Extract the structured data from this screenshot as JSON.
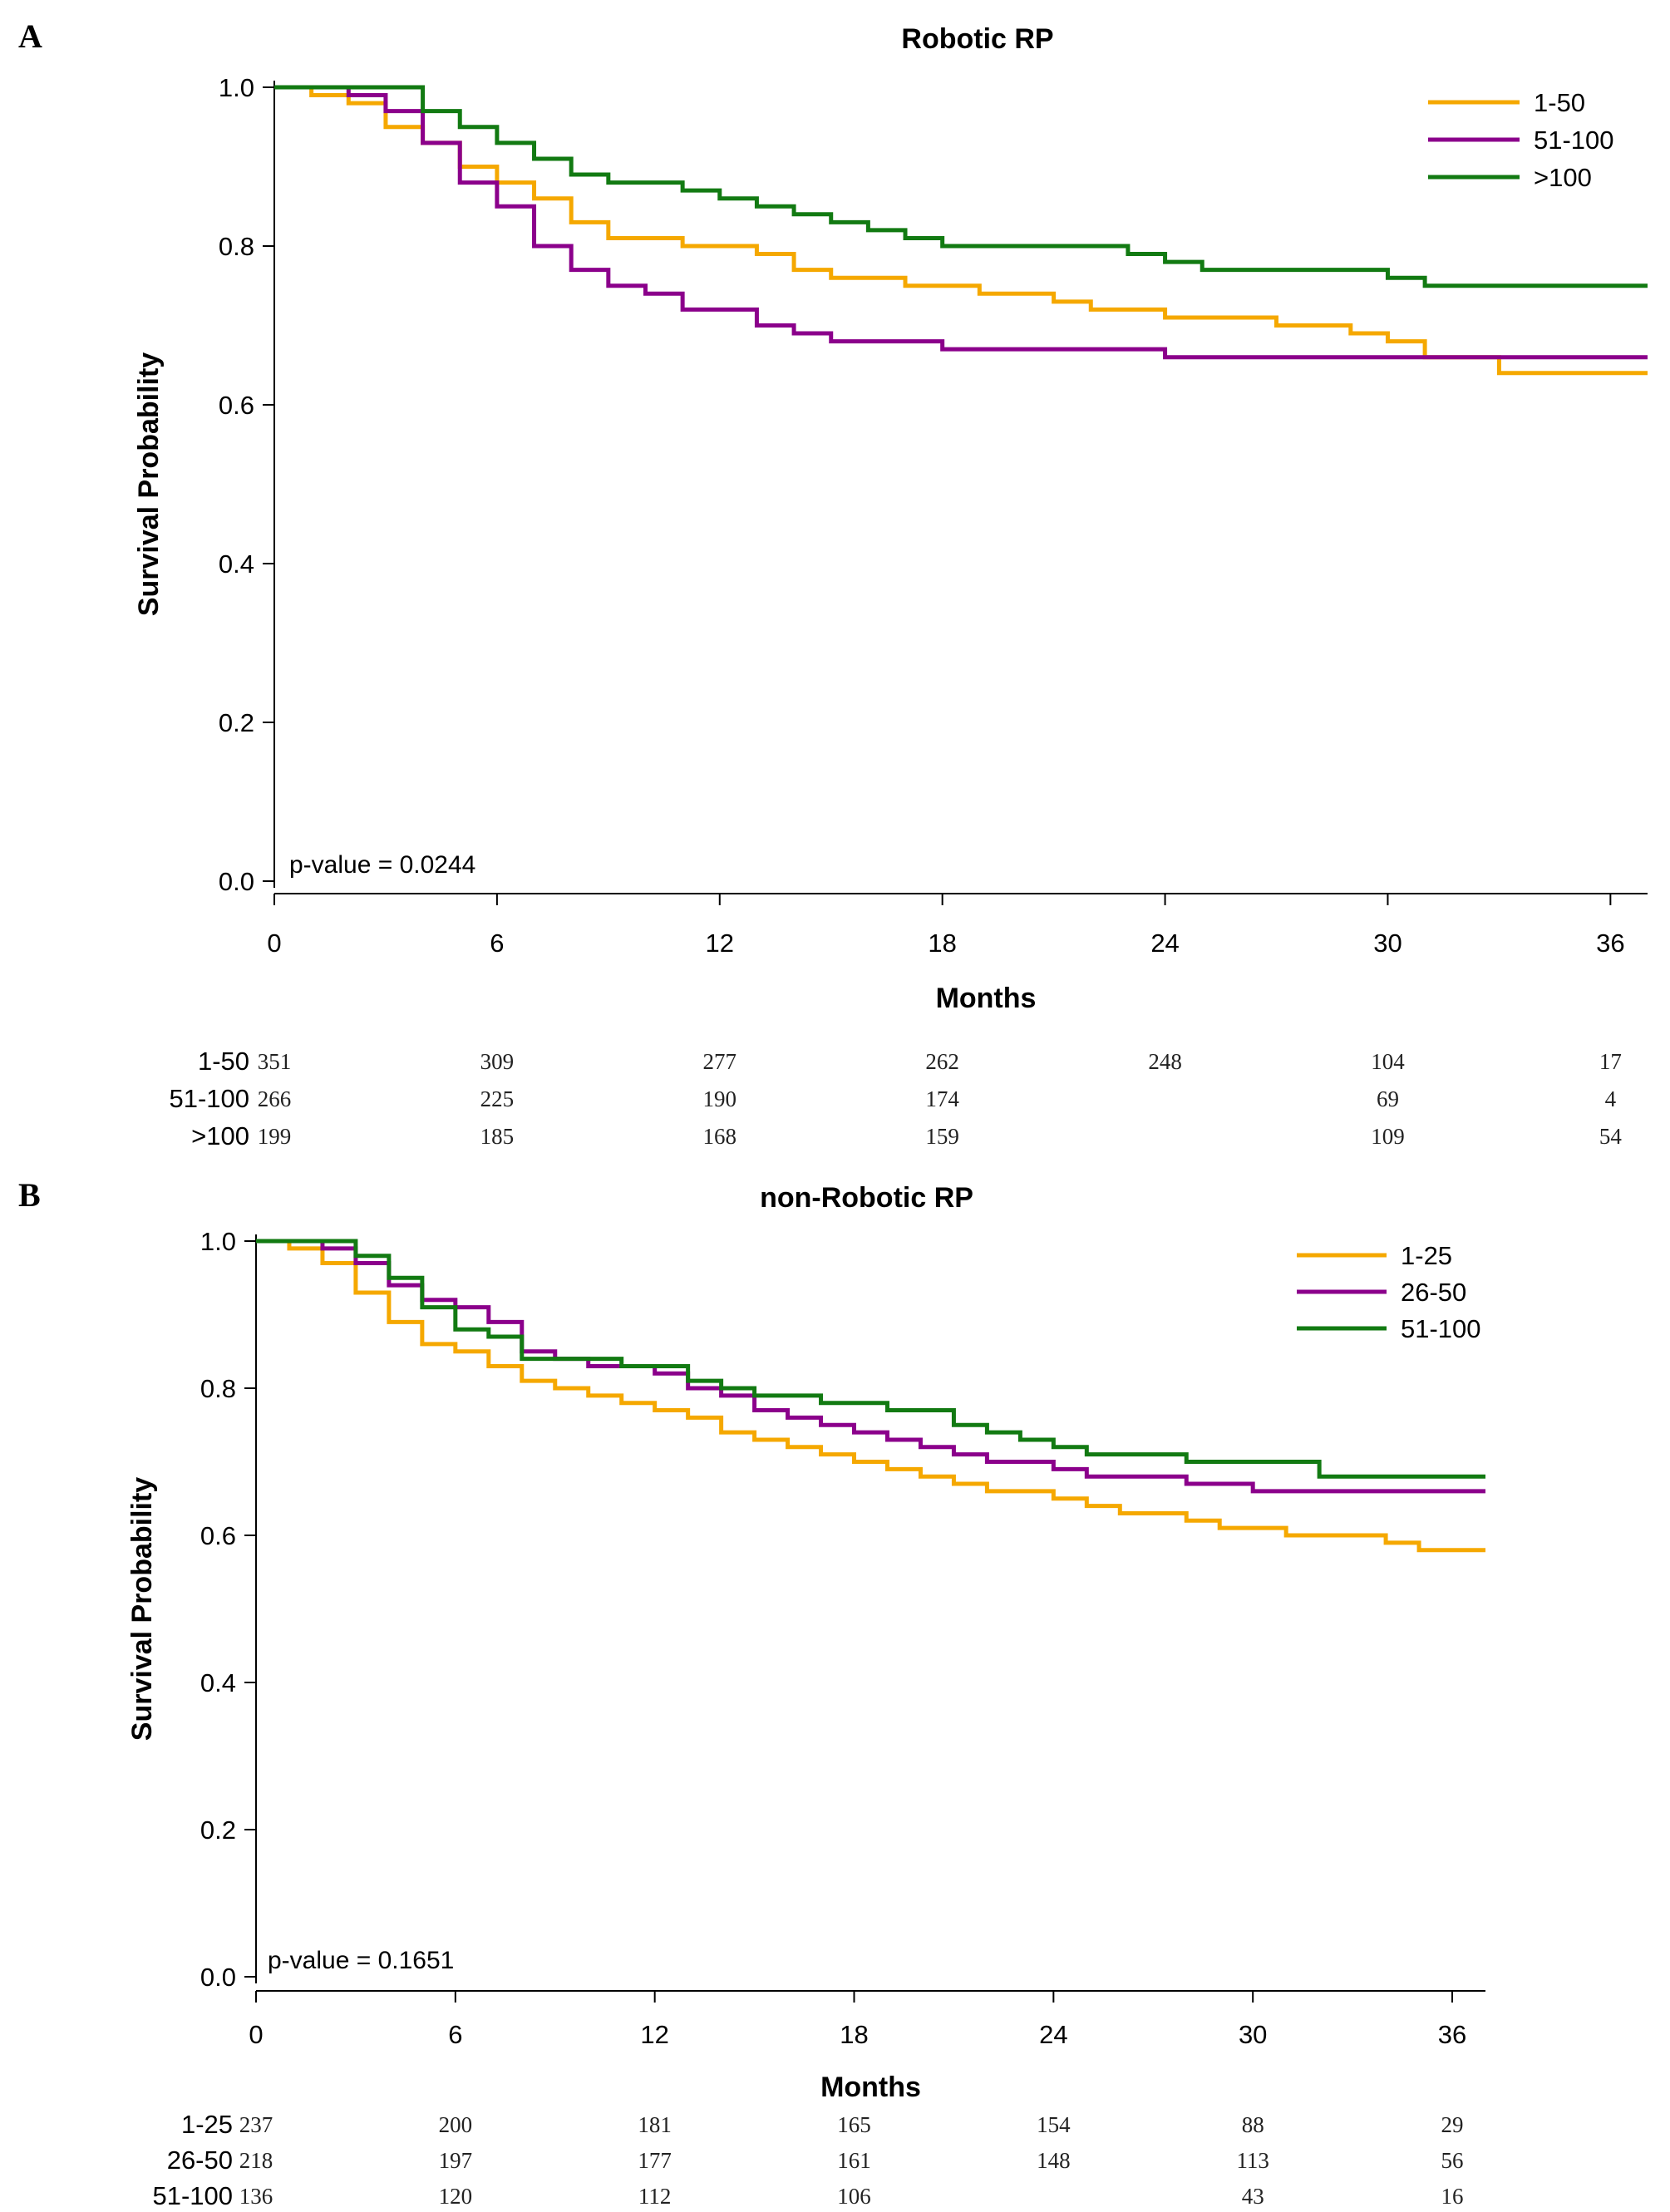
{
  "colors": {
    "orange": "#f5a800",
    "purple": "#8b008b",
    "green": "#127a12",
    "axis": "#000000"
  },
  "chart_data": [
    {
      "panel": "A",
      "type": "line",
      "title": "Robotic RP",
      "xlabel": "Months",
      "ylabel": "Survival Probability",
      "xlim": [
        0,
        37
      ],
      "ylim": [
        0,
        1.0
      ],
      "xticks": [
        0,
        6,
        12,
        18,
        24,
        30,
        36
      ],
      "yticks": [
        "0.0",
        "0.2",
        "0.4",
        "0.6",
        "0.8",
        "1.0"
      ],
      "legend_position": "top-right",
      "p_value": "p-value = 0.0244",
      "series": [
        {
          "name": "1-50",
          "color": "#f5a800",
          "points": [
            [
              0,
              1.0
            ],
            [
              1,
              0.99
            ],
            [
              2,
              0.98
            ],
            [
              3,
              0.95
            ],
            [
              4,
              0.93
            ],
            [
              5,
              0.9
            ],
            [
              6,
              0.88
            ],
            [
              7,
              0.86
            ],
            [
              8,
              0.83
            ],
            [
              9,
              0.81
            ],
            [
              10,
              0.81
            ],
            [
              11,
              0.8
            ],
            [
              12,
              0.8
            ],
            [
              13,
              0.79
            ],
            [
              14,
              0.77
            ],
            [
              15,
              0.76
            ],
            [
              16,
              0.76
            ],
            [
              17,
              0.75
            ],
            [
              18,
              0.75
            ],
            [
              19,
              0.74
            ],
            [
              20,
              0.74
            ],
            [
              21,
              0.73
            ],
            [
              22,
              0.72
            ],
            [
              23,
              0.72
            ],
            [
              24,
              0.71
            ],
            [
              25,
              0.71
            ],
            [
              26,
              0.71
            ],
            [
              27,
              0.7
            ],
            [
              28,
              0.7
            ],
            [
              29,
              0.69
            ],
            [
              30,
              0.68
            ],
            [
              31,
              0.66
            ],
            [
              32,
              0.66
            ],
            [
              33,
              0.64
            ],
            [
              37,
              0.64
            ]
          ]
        },
        {
          "name": "51-100",
          "color": "#8b008b",
          "points": [
            [
              0,
              1.0
            ],
            [
              1,
              1.0
            ],
            [
              2,
              0.99
            ],
            [
              3,
              0.97
            ],
            [
              4,
              0.93
            ],
            [
              5,
              0.88
            ],
            [
              6,
              0.85
            ],
            [
              7,
              0.8
            ],
            [
              8,
              0.77
            ],
            [
              9,
              0.75
            ],
            [
              10,
              0.74
            ],
            [
              11,
              0.72
            ],
            [
              12,
              0.72
            ],
            [
              13,
              0.7
            ],
            [
              14,
              0.69
            ],
            [
              15,
              0.68
            ],
            [
              16,
              0.68
            ],
            [
              17,
              0.68
            ],
            [
              18,
              0.67
            ],
            [
              19,
              0.67
            ],
            [
              20,
              0.67
            ],
            [
              22,
              0.67
            ],
            [
              24,
              0.66
            ],
            [
              26,
              0.66
            ],
            [
              28,
              0.66
            ],
            [
              30,
              0.66
            ],
            [
              37,
              0.66
            ]
          ]
        },
        {
          "name": ">100",
          "color": "#127a12",
          "points": [
            [
              0,
              1.0
            ],
            [
              1,
              1.0
            ],
            [
              2,
              1.0
            ],
            [
              3,
              1.0
            ],
            [
              4,
              0.97
            ],
            [
              5,
              0.95
            ],
            [
              6,
              0.93
            ],
            [
              7,
              0.91
            ],
            [
              8,
              0.89
            ],
            [
              9,
              0.88
            ],
            [
              10,
              0.88
            ],
            [
              11,
              0.87
            ],
            [
              12,
              0.86
            ],
            [
              13,
              0.85
            ],
            [
              14,
              0.84
            ],
            [
              15,
              0.83
            ],
            [
              16,
              0.82
            ],
            [
              17,
              0.81
            ],
            [
              18,
              0.8
            ],
            [
              19,
              0.8
            ],
            [
              20,
              0.8
            ],
            [
              22,
              0.8
            ],
            [
              23,
              0.79
            ],
            [
              24,
              0.78
            ],
            [
              25,
              0.77
            ],
            [
              26,
              0.77
            ],
            [
              28,
              0.77
            ],
            [
              30,
              0.76
            ],
            [
              31,
              0.75
            ],
            [
              32,
              0.75
            ],
            [
              37,
              0.75
            ]
          ]
        }
      ],
      "risk_table": {
        "groups": [
          "1-50",
          "51-100",
          ">100"
        ],
        "times": [
          0,
          6,
          12,
          18,
          24,
          30,
          36
        ],
        "values": [
          [
            "351",
            "309",
            "277",
            "262",
            "248",
            "104",
            "17"
          ],
          [
            "266",
            "225",
            "190",
            "174",
            "",
            "69",
            "4"
          ],
          [
            "199",
            "185",
            "168",
            "159",
            "",
            "109",
            "54"
          ]
        ]
      }
    },
    {
      "panel": "B",
      "type": "line",
      "title": "non-Robotic RP",
      "xlabel": "Months",
      "ylabel": "Survival Probability",
      "xlim": [
        0,
        37
      ],
      "ylim": [
        0,
        1.0
      ],
      "xticks": [
        0,
        6,
        12,
        18,
        24,
        30,
        36
      ],
      "yticks": [
        "0.0",
        "0.2",
        "0.4",
        "0.6",
        "0.8",
        "1.0"
      ],
      "legend_position": "top-right",
      "p_value": "p-value = 0.1651",
      "series": [
        {
          "name": "1-25",
          "color": "#f5a800",
          "points": [
            [
              0,
              1.0
            ],
            [
              1,
              0.99
            ],
            [
              2,
              0.97
            ],
            [
              3,
              0.93
            ],
            [
              4,
              0.89
            ],
            [
              5,
              0.86
            ],
            [
              6,
              0.85
            ],
            [
              7,
              0.83
            ],
            [
              8,
              0.81
            ],
            [
              9,
              0.8
            ],
            [
              10,
              0.79
            ],
            [
              11,
              0.78
            ],
            [
              12,
              0.77
            ],
            [
              13,
              0.76
            ],
            [
              14,
              0.74
            ],
            [
              15,
              0.73
            ],
            [
              16,
              0.72
            ],
            [
              17,
              0.71
            ],
            [
              18,
              0.7
            ],
            [
              19,
              0.69
            ],
            [
              20,
              0.68
            ],
            [
              21,
              0.67
            ],
            [
              22,
              0.66
            ],
            [
              23,
              0.66
            ],
            [
              24,
              0.65
            ],
            [
              25,
              0.64
            ],
            [
              26,
              0.63
            ],
            [
              27,
              0.63
            ],
            [
              28,
              0.62
            ],
            [
              29,
              0.61
            ],
            [
              30,
              0.61
            ],
            [
              31,
              0.6
            ],
            [
              32,
              0.6
            ],
            [
              33,
              0.6
            ],
            [
              34,
              0.59
            ],
            [
              35,
              0.58
            ],
            [
              37,
              0.58
            ]
          ]
        },
        {
          "name": "26-50",
          "color": "#8b008b",
          "points": [
            [
              0,
              1.0
            ],
            [
              1,
              1.0
            ],
            [
              2,
              0.99
            ],
            [
              3,
              0.97
            ],
            [
              4,
              0.94
            ],
            [
              5,
              0.92
            ],
            [
              6,
              0.91
            ],
            [
              7,
              0.89
            ],
            [
              8,
              0.85
            ],
            [
              9,
              0.84
            ],
            [
              10,
              0.83
            ],
            [
              11,
              0.83
            ],
            [
              12,
              0.82
            ],
            [
              13,
              0.8
            ],
            [
              14,
              0.79
            ],
            [
              15,
              0.77
            ],
            [
              16,
              0.76
            ],
            [
              17,
              0.75
            ],
            [
              18,
              0.74
            ],
            [
              19,
              0.73
            ],
            [
              20,
              0.72
            ],
            [
              21,
              0.71
            ],
            [
              22,
              0.7
            ],
            [
              23,
              0.7
            ],
            [
              24,
              0.69
            ],
            [
              25,
              0.68
            ],
            [
              26,
              0.68
            ],
            [
              27,
              0.68
            ],
            [
              28,
              0.67
            ],
            [
              29,
              0.67
            ],
            [
              30,
              0.66
            ],
            [
              37,
              0.66
            ]
          ]
        },
        {
          "name": "51-100",
          "color": "#127a12",
          "points": [
            [
              0,
              1.0
            ],
            [
              1,
              1.0
            ],
            [
              2,
              1.0
            ],
            [
              3,
              0.98
            ],
            [
              4,
              0.95
            ],
            [
              5,
              0.91
            ],
            [
              6,
              0.88
            ],
            [
              7,
              0.87
            ],
            [
              8,
              0.84
            ],
            [
              9,
              0.84
            ],
            [
              10,
              0.84
            ],
            [
              11,
              0.83
            ],
            [
              12,
              0.83
            ],
            [
              13,
              0.81
            ],
            [
              14,
              0.8
            ],
            [
              15,
              0.79
            ],
            [
              16,
              0.79
            ],
            [
              17,
              0.78
            ],
            [
              18,
              0.78
            ],
            [
              19,
              0.77
            ],
            [
              20,
              0.77
            ],
            [
              21,
              0.75
            ],
            [
              22,
              0.74
            ],
            [
              23,
              0.73
            ],
            [
              24,
              0.72
            ],
            [
              25,
              0.71
            ],
            [
              26,
              0.71
            ],
            [
              27,
              0.71
            ],
            [
              28,
              0.7
            ],
            [
              29,
              0.7
            ],
            [
              30,
              0.7
            ],
            [
              31,
              0.7
            ],
            [
              32,
              0.68
            ],
            [
              37,
              0.68
            ]
          ]
        }
      ],
      "risk_table": {
        "groups": [
          "1-25",
          "26-50",
          "51-100"
        ],
        "times": [
          0,
          6,
          12,
          18,
          24,
          30,
          36
        ],
        "values": [
          [
            "237",
            "200",
            "181",
            "165",
            "154",
            "88",
            "29"
          ],
          [
            "218",
            "197",
            "177",
            "161",
            "148",
            "113",
            "56"
          ],
          [
            "136",
            "120",
            "112",
            "106",
            "",
            "43",
            "16"
          ]
        ]
      }
    }
  ]
}
